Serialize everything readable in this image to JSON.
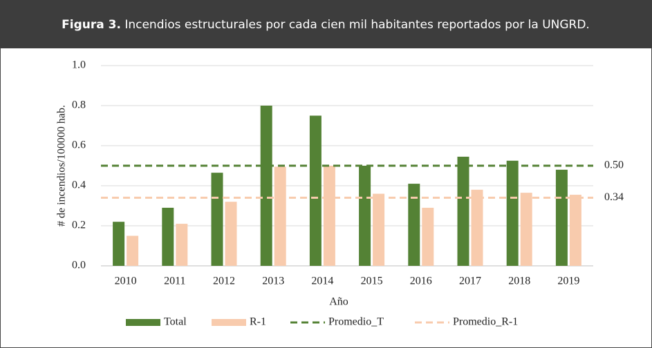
{
  "header": {
    "label": "Figura 3.",
    "caption": "Incendios estructurales por cada cien mil habitantes reportados por la UNGRD."
  },
  "chart_data": {
    "type": "bar",
    "xlabel": "Año",
    "ylabel": "# de incendios/100000 hab.",
    "categories": [
      "2010",
      "2011",
      "2012",
      "2013",
      "2014",
      "2015",
      "2016",
      "2017",
      "2018",
      "2019"
    ],
    "series": [
      {
        "name": "Total",
        "color": "#548235",
        "values": [
          0.22,
          0.29,
          0.465,
          0.8,
          0.75,
          0.5,
          0.41,
          0.545,
          0.525,
          0.48
        ]
      },
      {
        "name": "R-1",
        "color": "#f8cbad",
        "values": [
          0.15,
          0.21,
          0.32,
          0.495,
          0.5,
          0.36,
          0.29,
          0.38,
          0.365,
          0.355
        ]
      }
    ],
    "reference_lines": [
      {
        "name": "Promedio_T",
        "color": "#548235",
        "values": [
          0.5
        ],
        "value_labels": [
          "0.50"
        ]
      },
      {
        "name": "Promedio_R-1",
        "color": "#f8cbad",
        "values": [
          0.34
        ],
        "value_labels": [
          "0.34"
        ]
      }
    ],
    "ylim": [
      0,
      1
    ],
    "yticks": [
      {
        "value": 0,
        "label": "0.0"
      },
      0.2,
      0.4,
      0.6,
      0.8,
      {
        "value": 1,
        "label": "1.0"
      }
    ],
    "grid": true,
    "legend": "bottom"
  }
}
